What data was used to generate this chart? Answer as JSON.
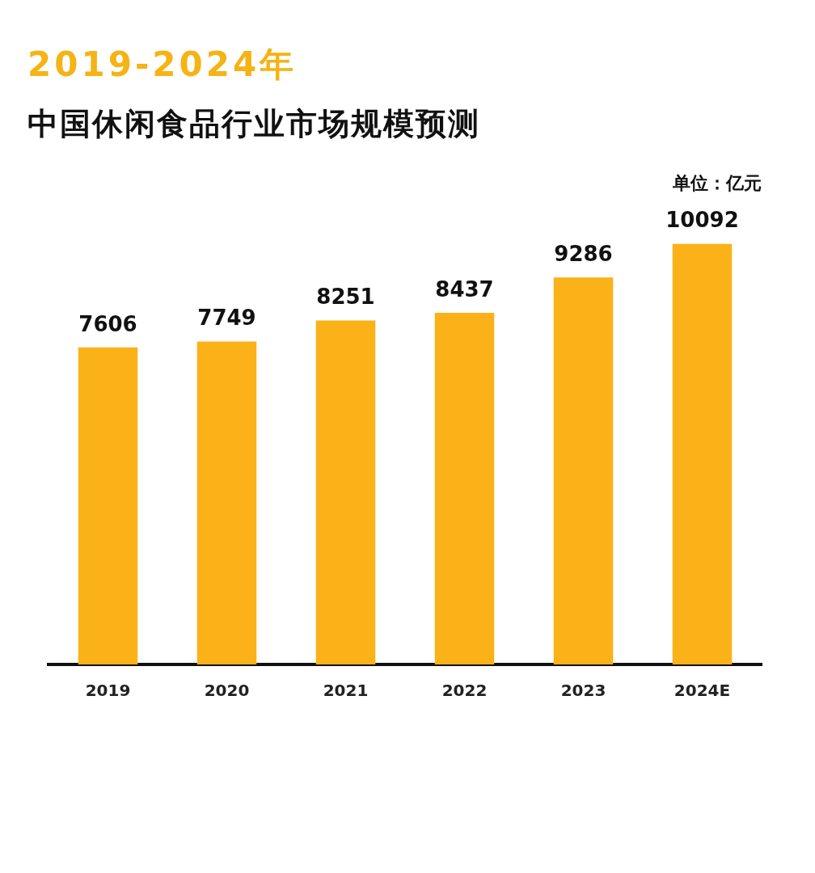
{
  "chart_data": {
    "type": "bar",
    "title": "2019-2024年",
    "subtitle": "中国休闲食品行业市场规模预测",
    "annotations": [
      "单位：亿元"
    ],
    "categories": [
      "2019",
      "2020",
      "2021",
      "2022",
      "2023",
      "2024E"
    ],
    "values": [
      7606,
      7749,
      8251,
      8437,
      9286,
      10092
    ],
    "color": "#fbb118",
    "data_labels": true,
    "grid": false,
    "legend": false
  }
}
